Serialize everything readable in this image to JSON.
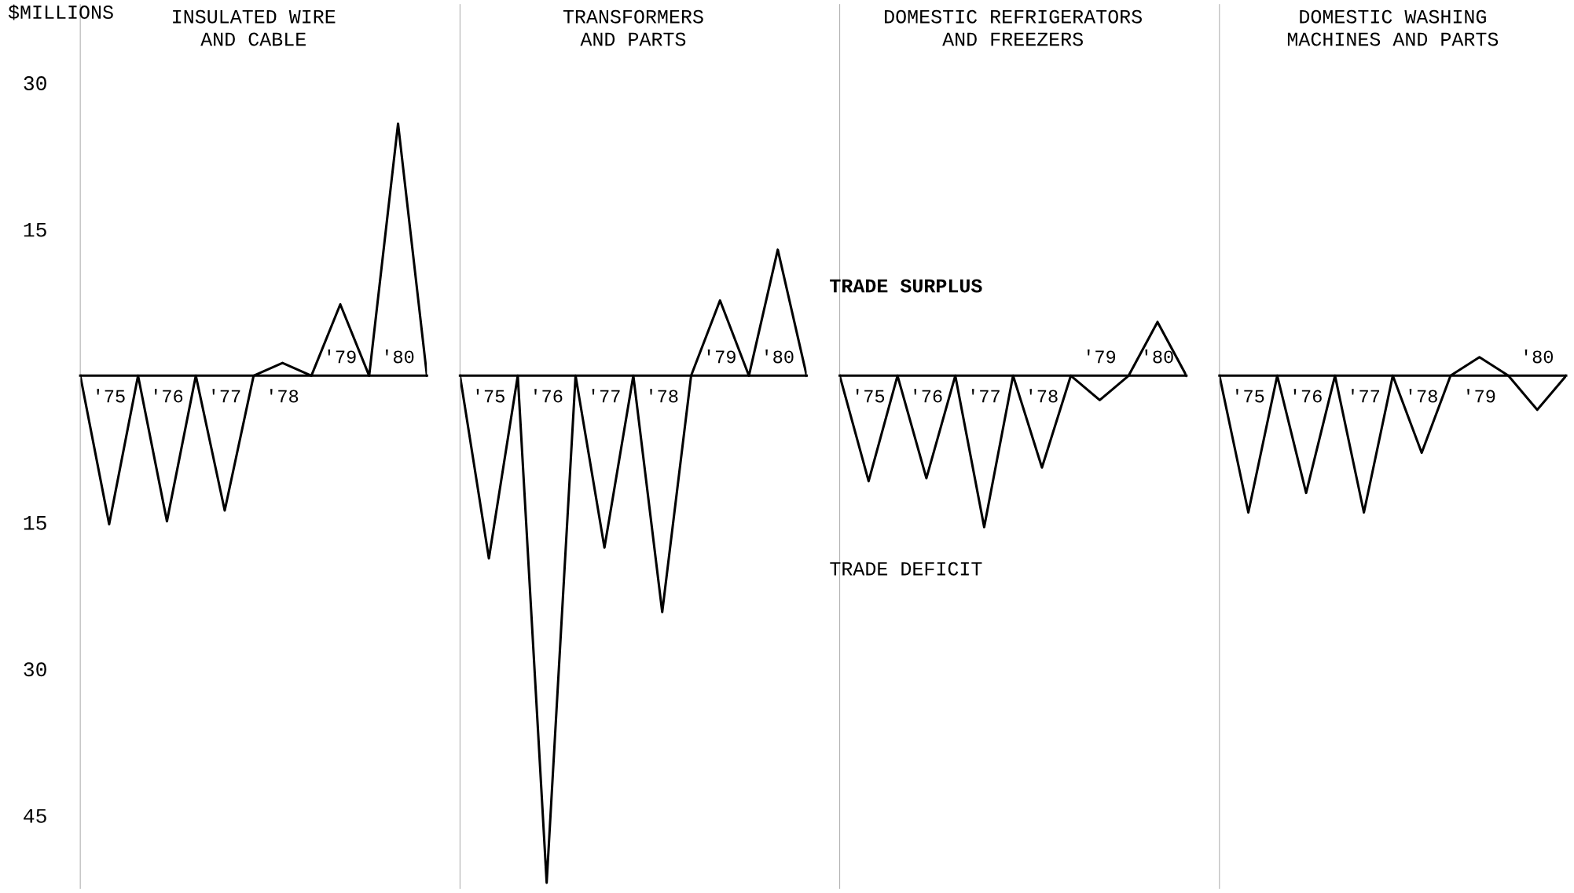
{
  "chart_data": [
    {
      "type": "line",
      "title": "INSULATED WIRE\nAND CABLE",
      "ylabel": "$MILLIONS",
      "categories": [
        null,
        "'75",
        null,
        "'76",
        null,
        "'77",
        null,
        "'78",
        null,
        "'79",
        null,
        "'80",
        null
      ],
      "values": [
        0,
        -15.2,
        0,
        -14.9,
        0,
        -13.8,
        0,
        1.3,
        0,
        7.3,
        0,
        25.8,
        0
      ],
      "color": "#000000",
      "marker": "none",
      "line_style": "solid",
      "ylim": [
        -52.5,
        38
      ],
      "yticks": [
        {
          "value": 30,
          "label": "30"
        },
        {
          "value": 15,
          "label": "15"
        },
        {
          "value": -15,
          "label": "15"
        },
        {
          "value": -30,
          "label": "30"
        },
        {
          "value": -45,
          "label": "45"
        }
      ],
      "grid": false
    },
    {
      "type": "line",
      "title": "TRANSFORMERS\nAND PARTS",
      "categories": [
        null,
        "'75",
        null,
        "'76",
        null,
        "'77",
        null,
        "'78",
        null,
        "'79",
        null,
        "'80",
        null
      ],
      "values": [
        0,
        -18.7,
        0,
        -51.9,
        0,
        -17.6,
        0,
        -24.2,
        0,
        7.7,
        0,
        12.9,
        0
      ],
      "color": "#000000",
      "marker": "none",
      "line_style": "solid",
      "ylim": [
        -52.5,
        38
      ],
      "tick_labels": "x",
      "grid": false
    },
    {
      "type": "line",
      "title": "DOMESTIC REFRIGERATORS\nAND FREEZERS",
      "categories": [
        null,
        "'75",
        null,
        "'76",
        null,
        "'77",
        null,
        "'78",
        null,
        "'79",
        null,
        "'80",
        null
      ],
      "values": [
        0,
        -10.8,
        0,
        -10.5,
        0,
        -15.5,
        0,
        -9.4,
        0,
        -2.5,
        0,
        5.5,
        0
      ],
      "color": "#000000",
      "marker": "none",
      "line_style": "solid",
      "ylim": [
        -52.5,
        38
      ],
      "tick_labels": "x",
      "grid": false,
      "annotations": [
        "TRADE SURPLUS",
        "TRADE DEFICIT"
      ]
    },
    {
      "type": "line",
      "title": "DOMESTIC WASHING\nMACHINES AND PARTS",
      "categories": [
        null,
        "'75",
        null,
        "'76",
        null,
        "'77",
        null,
        "'78",
        null,
        "'79",
        null,
        "'80",
        null
      ],
      "values": [
        0,
        -14.0,
        0,
        -12.0,
        0,
        -14.0,
        0,
        -7.9,
        0,
        1.9,
        0,
        -3.5,
        0
      ],
      "color": "#000000",
      "marker": "none",
      "line_style": "solid",
      "ylim": [
        -52.5,
        38
      ],
      "tick_labels": "x",
      "grid": false
    }
  ]
}
